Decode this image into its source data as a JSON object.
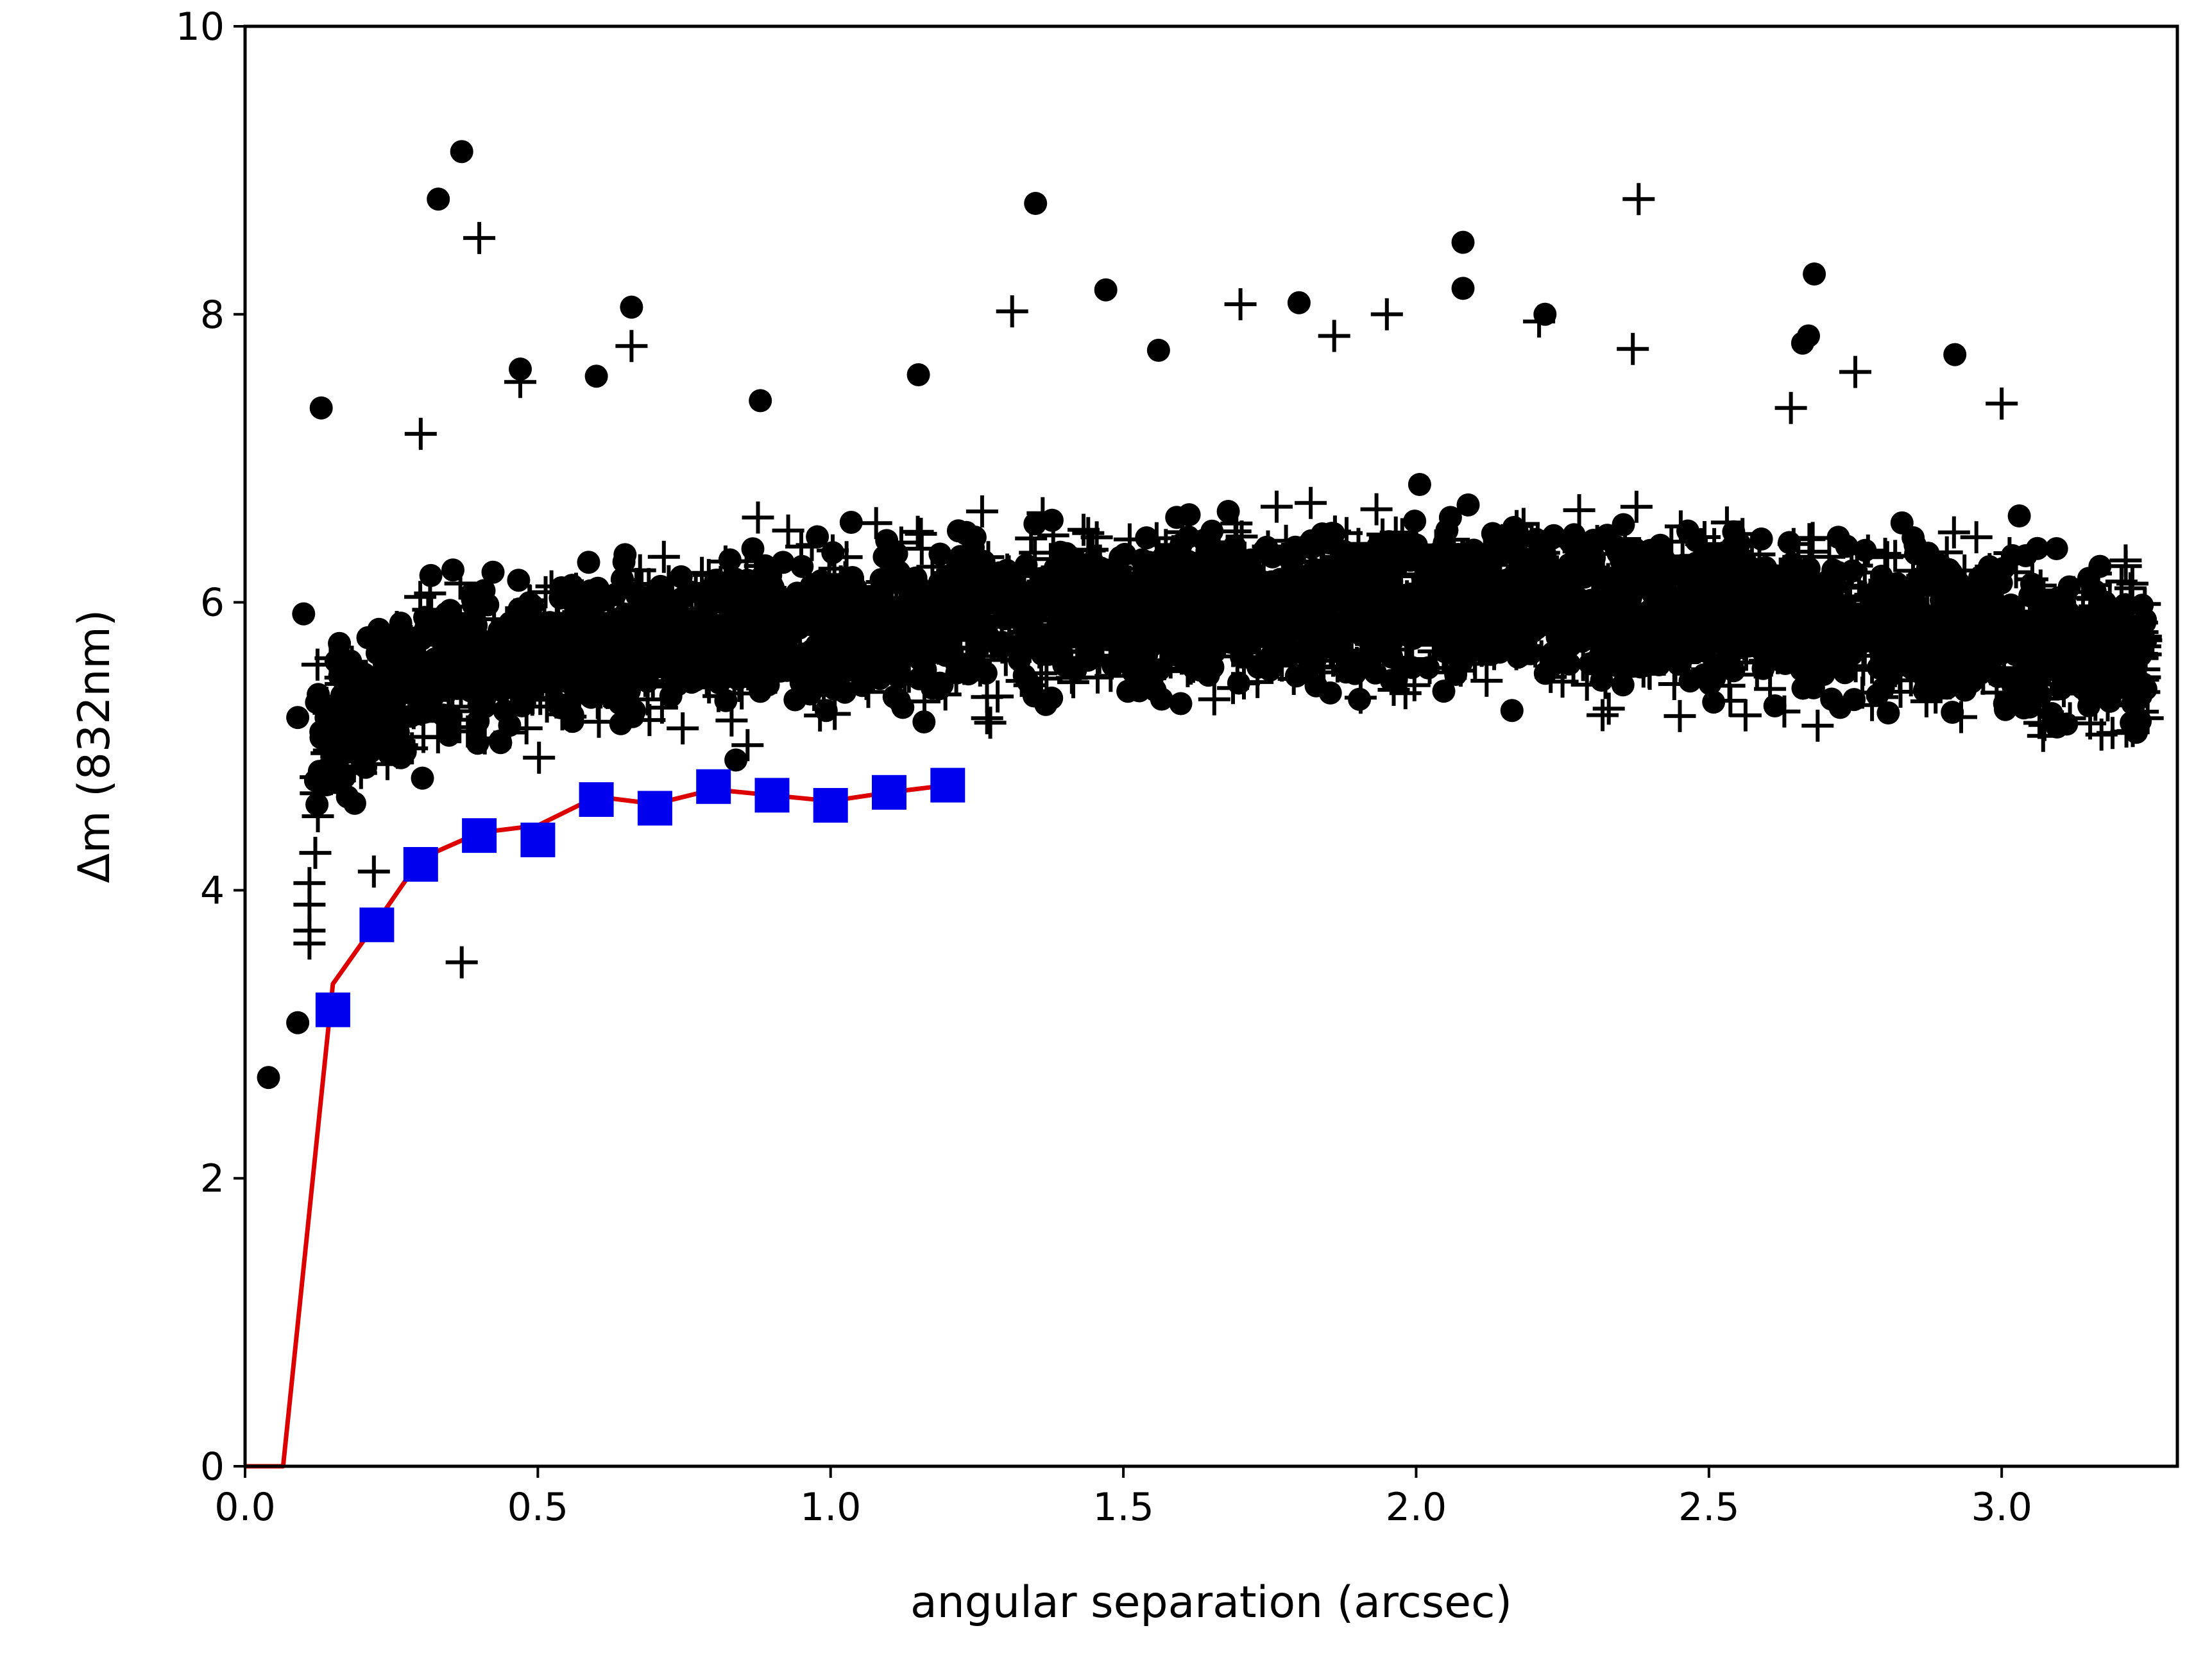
{
  "chart_data": {
    "type": "scatter",
    "title": "",
    "xlabel": "angular separation (arcsec)",
    "ylabel": "Δm (832nm)",
    "xlim": [
      0.0,
      3.3
    ],
    "ylim": [
      0,
      10
    ],
    "x_ticks": [
      "0.0",
      "0.5",
      "1.0",
      "1.5",
      "2.0",
      "2.5",
      "3.0"
    ],
    "y_ticks": [
      "0",
      "2",
      "4",
      "6",
      "8",
      "10"
    ],
    "grid": false,
    "legend": "none",
    "series": [
      {
        "marker": "dot",
        "color": "#000000",
        "cloud": {
          "count": 2400,
          "x_range": [
            0.12,
            3.25
          ],
          "center_curve": [
            [
              0.12,
              5.0
            ],
            [
              0.3,
              5.5
            ],
            [
              0.6,
              5.7
            ],
            [
              1.0,
              5.85
            ],
            [
              1.5,
              5.95
            ],
            [
              2.0,
              6.0
            ],
            [
              2.5,
              5.95
            ],
            [
              3.0,
              5.8
            ],
            [
              3.25,
              5.6
            ]
          ],
          "spread_sd": 0.42,
          "floor_curve": [
            [
              0.12,
              4.2
            ],
            [
              0.3,
              4.65
            ],
            [
              0.6,
              4.85
            ],
            [
              1.0,
              4.8
            ],
            [
              1.5,
              4.9
            ],
            [
              2.0,
              4.9
            ],
            [
              2.5,
              4.75
            ],
            [
              3.0,
              5.0
            ],
            [
              3.25,
              5.1
            ]
          ]
        },
        "outliers": [
          [
            0.04,
            2.7
          ],
          [
            0.09,
            3.08
          ],
          [
            0.09,
            5.2
          ],
          [
            0.1,
            5.92
          ],
          [
            0.13,
            7.35
          ],
          [
            0.33,
            8.8
          ],
          [
            0.37,
            9.13
          ],
          [
            0.47,
            7.62
          ],
          [
            0.66,
            8.05
          ],
          [
            0.6,
            7.57
          ],
          [
            0.88,
            7.4
          ],
          [
            1.15,
            7.58
          ],
          [
            1.35,
            8.77
          ],
          [
            1.47,
            8.17
          ],
          [
            1.56,
            7.75
          ],
          [
            1.8,
            8.08
          ],
          [
            2.08,
            8.5
          ],
          [
            2.08,
            8.18
          ],
          [
            2.22,
            8.0
          ],
          [
            2.68,
            8.28
          ],
          [
            2.67,
            7.85
          ],
          [
            2.66,
            7.8
          ],
          [
            2.92,
            7.72
          ],
          [
            3.03,
            6.6
          ],
          [
            3.24,
            5.98
          ]
        ]
      },
      {
        "marker": "plus",
        "color": "#000000",
        "cloud": {
          "count": 1700,
          "x_range": [
            0.12,
            3.25
          ],
          "center_curve": [
            [
              0.12,
              5.0
            ],
            [
              0.3,
              5.5
            ],
            [
              0.6,
              5.7
            ],
            [
              1.0,
              5.85
            ],
            [
              1.5,
              5.95
            ],
            [
              2.0,
              6.0
            ],
            [
              2.5,
              5.95
            ],
            [
              3.0,
              5.8
            ],
            [
              3.25,
              5.6
            ]
          ],
          "spread_sd": 0.45,
          "floor_curve": [
            [
              0.12,
              4.0
            ],
            [
              0.3,
              4.5
            ],
            [
              0.6,
              4.8
            ],
            [
              1.0,
              4.8
            ],
            [
              1.5,
              4.85
            ],
            [
              2.0,
              4.85
            ],
            [
              2.5,
              4.85
            ],
            [
              3.0,
              5.0
            ],
            [
              3.25,
              5.1
            ]
          ]
        },
        "outliers": [
          [
            0.4,
            8.53
          ],
          [
            0.37,
            3.5
          ],
          [
            0.11,
            3.63
          ],
          [
            0.11,
            3.72
          ],
          [
            0.11,
            3.9
          ],
          [
            0.11,
            4.05
          ],
          [
            0.12,
            4.26
          ],
          [
            0.22,
            4.13
          ],
          [
            1.31,
            8.02
          ],
          [
            1.7,
            8.07
          ],
          [
            1.95,
            8.0
          ],
          [
            1.86,
            7.85
          ],
          [
            2.38,
            8.8
          ],
          [
            2.37,
            7.76
          ],
          [
            2.21,
            7.95
          ],
          [
            2.75,
            7.6
          ],
          [
            2.64,
            7.35
          ],
          [
            3.0,
            7.38
          ],
          [
            0.66,
            7.78
          ],
          [
            0.47,
            7.53
          ],
          [
            0.3,
            7.17
          ]
        ]
      },
      {
        "name": "",
        "marker": "square",
        "color": "#0000ee",
        "x": [
          0.15,
          0.225,
          0.3,
          0.4,
          0.5,
          0.6,
          0.7,
          0.8,
          0.9,
          1.0,
          1.1,
          1.2
        ],
        "y": [
          3.17,
          3.76,
          4.18,
          4.38,
          4.35,
          4.63,
          4.57,
          4.72,
          4.66,
          4.59,
          4.68,
          4.73
        ]
      },
      {
        "name": "",
        "marker": "line",
        "color": "#dd0000",
        "x": [
          0.0,
          0.065,
          0.15,
          0.225,
          0.3,
          0.4,
          0.5,
          0.6,
          0.7,
          0.8,
          0.9,
          1.0,
          1.1,
          1.2
        ],
        "y": [
          0.0,
          0.0,
          3.35,
          3.78,
          4.22,
          4.4,
          4.45,
          4.65,
          4.6,
          4.7,
          4.66,
          4.62,
          4.68,
          4.73
        ]
      }
    ]
  }
}
